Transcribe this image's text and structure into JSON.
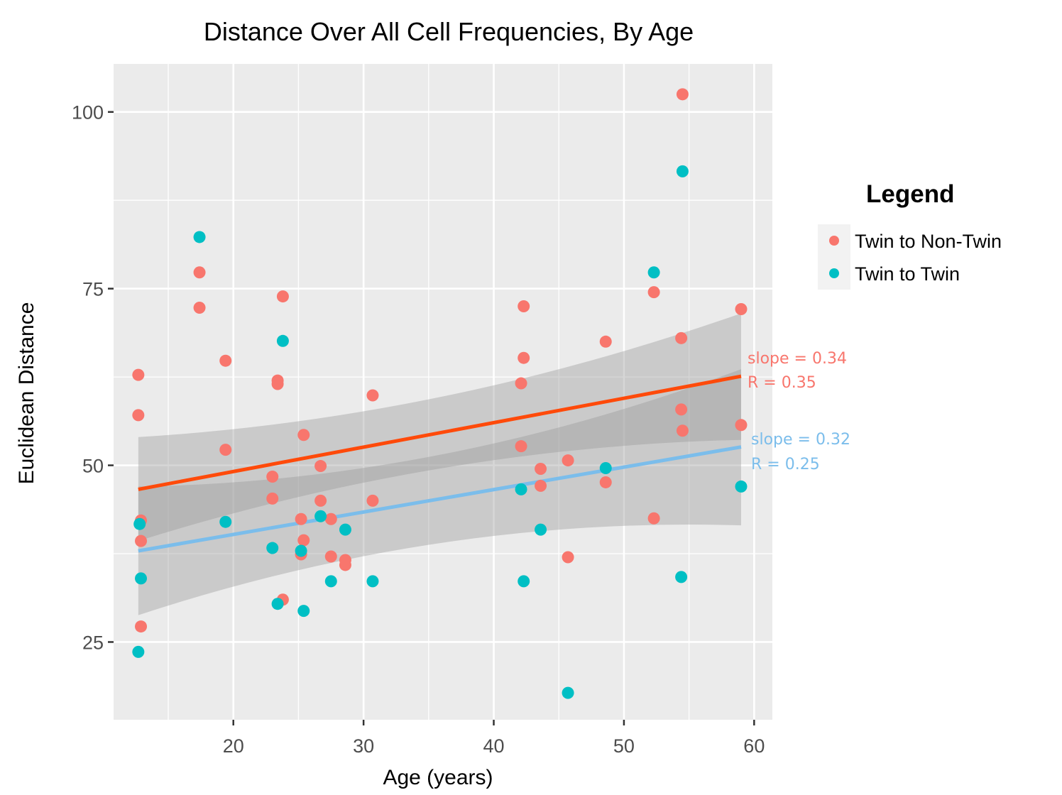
{
  "chart_data": {
    "type": "scatter",
    "title": "Distance Over All Cell Frequencies, By Age",
    "xlabel": "Age (years)",
    "ylabel": "Euclidean Distance",
    "xlim": [
      10.8,
      61.4
    ],
    "ylim": [
      14.0,
      106.8
    ],
    "x_ticks": [
      20,
      30,
      40,
      50,
      60
    ],
    "y_ticks": [
      25,
      50,
      75,
      100
    ],
    "x_tick_labels": [
      "20",
      "30",
      "40",
      "50",
      "60"
    ],
    "y_tick_labels": [
      "25",
      "50",
      "75",
      "100"
    ],
    "grid": true,
    "legend": {
      "title": "Legend",
      "position": "right",
      "items": [
        "Twin to Non-Twin",
        "Twin to Twin"
      ]
    },
    "series": [
      {
        "name": "Twin to Non-Twin",
        "color": "#F8766D",
        "points": [
          [
            12.7,
            62.8
          ],
          [
            12.7,
            57.1
          ],
          [
            12.9,
            42.2
          ],
          [
            12.9,
            39.3
          ],
          [
            12.9,
            27.2
          ],
          [
            17.4,
            77.3
          ],
          [
            17.4,
            72.3
          ],
          [
            19.4,
            64.8
          ],
          [
            19.4,
            52.2
          ],
          [
            23.0,
            48.4
          ],
          [
            23.0,
            45.3
          ],
          [
            23.4,
            62.0
          ],
          [
            23.4,
            61.5
          ],
          [
            23.8,
            73.9
          ],
          [
            23.8,
            31.0
          ],
          [
            25.2,
            42.4
          ],
          [
            25.2,
            37.4
          ],
          [
            25.4,
            54.3
          ],
          [
            25.4,
            39.4
          ],
          [
            26.7,
            49.9
          ],
          [
            26.7,
            45.0
          ],
          [
            27.5,
            42.4
          ],
          [
            27.5,
            37.1
          ],
          [
            28.6,
            36.6
          ],
          [
            28.6,
            35.9
          ],
          [
            30.7,
            59.9
          ],
          [
            30.7,
            45.0
          ],
          [
            42.1,
            61.6
          ],
          [
            42.1,
            52.7
          ],
          [
            42.3,
            72.5
          ],
          [
            42.3,
            65.2
          ],
          [
            43.6,
            49.5
          ],
          [
            43.6,
            47.1
          ],
          [
            45.7,
            50.7
          ],
          [
            45.7,
            37.0
          ],
          [
            48.6,
            67.5
          ],
          [
            48.6,
            47.6
          ],
          [
            52.3,
            74.5
          ],
          [
            52.3,
            42.5
          ],
          [
            54.4,
            68.0
          ],
          [
            54.4,
            57.9
          ],
          [
            54.5,
            102.5
          ],
          [
            54.5,
            54.9
          ],
          [
            59.0,
            72.1
          ],
          [
            59.0,
            55.7
          ]
        ]
      },
      {
        "name": "Twin to Twin",
        "color": "#00BFC4",
        "points": [
          [
            12.7,
            23.6
          ],
          [
            12.8,
            41.7
          ],
          [
            12.9,
            34.0
          ],
          [
            17.4,
            82.3
          ],
          [
            19.4,
            42.0
          ],
          [
            23.0,
            38.3
          ],
          [
            23.4,
            30.4
          ],
          [
            23.8,
            67.6
          ],
          [
            25.2,
            37.9
          ],
          [
            25.4,
            29.4
          ],
          [
            26.7,
            42.8
          ],
          [
            27.5,
            33.6
          ],
          [
            28.6,
            40.9
          ],
          [
            30.7,
            33.6
          ],
          [
            42.1,
            46.6
          ],
          [
            42.3,
            33.6
          ],
          [
            43.6,
            40.9
          ],
          [
            45.7,
            17.8
          ],
          [
            48.6,
            49.6
          ],
          [
            52.3,
            77.3
          ],
          [
            54.4,
            34.2
          ],
          [
            54.5,
            91.6
          ],
          [
            59.0,
            47.0
          ]
        ]
      }
    ],
    "trend_lines": [
      {
        "series": "Twin to Non-Twin",
        "color": "#FF4A0A",
        "x": [
          12.7,
          59.0
        ],
        "y": [
          46.6,
          62.6
        ],
        "ci_upper": [
          54.0,
          71.5
        ],
        "ci_lower": [
          39.3,
          53.6
        ]
      },
      {
        "series": "Twin to Twin",
        "color": "#7BBDEB",
        "x": [
          12.7,
          59.0
        ],
        "y": [
          37.9,
          52.6
        ],
        "ci_upper": [
          47.0,
          63.6
        ],
        "ci_lower": [
          28.8,
          41.5
        ]
      }
    ],
    "annotations": [
      {
        "series": "Twin to Non-Twin",
        "lines": [
          "slope = 0.34",
          "R = 0.35"
        ],
        "color": "#F8766D"
      },
      {
        "series": "Twin to Twin",
        "lines": [
          "slope = 0.32",
          "R = 0.25"
        ],
        "color": "#7BBDEB"
      }
    ]
  }
}
